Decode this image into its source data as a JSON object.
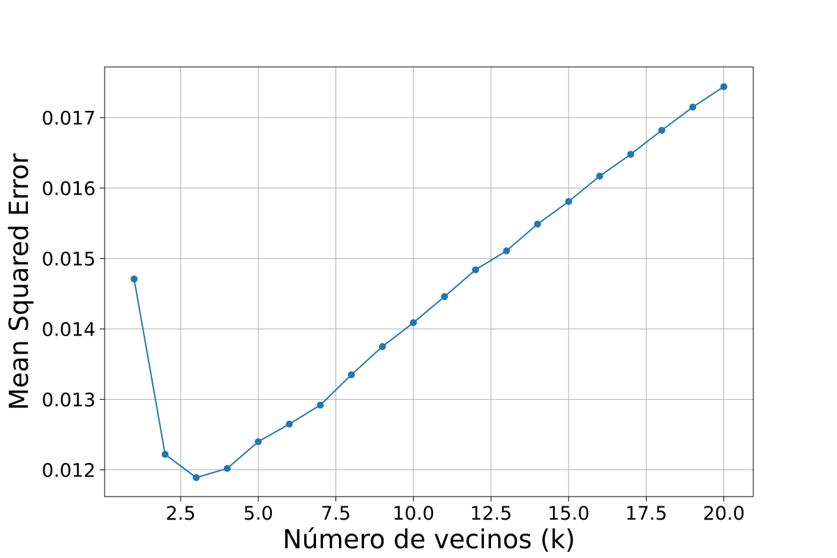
{
  "chart_data": {
    "type": "line",
    "title": "",
    "xlabel": "Número de vecinos (k)",
    "ylabel": "Mean Squared Error",
    "xlim": [
      0.05,
      20.95
    ],
    "ylim": [
      0.01162,
      0.01772
    ],
    "xticks": [
      2.5,
      5.0,
      7.5,
      10.0,
      12.5,
      15.0,
      17.5,
      20.0
    ],
    "xtick_labels": [
      "2.5",
      "5.0",
      "7.5",
      "10.0",
      "12.5",
      "15.0",
      "17.5",
      "20.0"
    ],
    "yticks": [
      0.012,
      0.013,
      0.014,
      0.015,
      0.016,
      0.017
    ],
    "ytick_labels": [
      "0.012",
      "0.013",
      "0.014",
      "0.015",
      "0.016",
      "0.017"
    ],
    "grid": true,
    "legend": false,
    "series": [
      {
        "color": "#1f77b4",
        "marker": "circle",
        "x": [
          1,
          2,
          3,
          4,
          5,
          6,
          7,
          8,
          9,
          10,
          11,
          12,
          13,
          14,
          15,
          16,
          17,
          18,
          19,
          20
        ],
        "values": [
          0.01471,
          0.01222,
          0.01189,
          0.01202,
          0.0124,
          0.01265,
          0.01292,
          0.01335,
          0.01375,
          0.01409,
          0.01446,
          0.01484,
          0.01511,
          0.01549,
          0.01581,
          0.01617,
          0.01648,
          0.01682,
          0.01715,
          0.01744
        ]
      }
    ],
    "colors": {
      "grid": "#b0b0b0",
      "axes": "#000000",
      "background": "#ffffff"
    }
  }
}
